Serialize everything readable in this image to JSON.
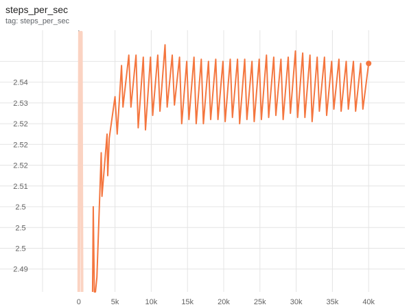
{
  "title": "steps_per_sec",
  "tag": "tag: steps_per_sec",
  "chart_data": {
    "type": "line",
    "x_ticks": [
      0,
      5000,
      10000,
      15000,
      20000,
      25000,
      30000,
      35000,
      40000
    ],
    "x_tick_labels": [
      "0",
      "5k",
      "10k",
      "15k",
      "20k",
      "25k",
      "30k",
      "35k",
      "40k"
    ],
    "y_ticks": [
      2.49,
      2.495,
      2.5,
      2.505,
      2.51,
      2.515,
      2.52,
      2.525,
      2.53,
      2.535,
      2.54
    ],
    "y_tick_labels": [
      "2.49",
      "2.5",
      "2.5",
      "2.5",
      "2.51",
      "2.52",
      "2.52",
      "2.52",
      "2.53",
      "2.54",
      ""
    ],
    "xlim": [
      -5000,
      45000
    ],
    "ylim": [
      2.4845,
      2.5475
    ],
    "grid": true,
    "series": [
      {
        "color": "#f4763f",
        "smoothed": true,
        "points": [
          [
            1900,
            2.4845
          ],
          [
            2000,
            2.505
          ],
          [
            2150,
            2.4845
          ],
          [
            2300,
            2.4845
          ],
          [
            2500,
            2.488
          ],
          [
            3100,
            2.518
          ],
          [
            3200,
            2.5075
          ],
          [
            3900,
            2.5225
          ],
          [
            4000,
            2.5125
          ],
          [
            4200,
            2.5215
          ],
          [
            5000,
            2.5315
          ],
          [
            5300,
            2.5225
          ],
          [
            5900,
            2.539
          ],
          [
            6100,
            2.529
          ],
          [
            6900,
            2.5415
          ],
          [
            7200,
            2.529
          ],
          [
            7900,
            2.5415
          ],
          [
            8200,
            2.524
          ],
          [
            8900,
            2.541
          ],
          [
            9200,
            2.5235
          ],
          [
            9900,
            2.541
          ],
          [
            10200,
            2.527
          ],
          [
            10900,
            2.5415
          ],
          [
            11200,
            2.528
          ],
          [
            11900,
            2.544
          ],
          [
            12200,
            2.529
          ],
          [
            12900,
            2.5415
          ],
          [
            13200,
            2.5295
          ],
          [
            13900,
            2.541
          ],
          [
            14200,
            2.525
          ],
          [
            14900,
            2.54
          ],
          [
            15200,
            2.526
          ],
          [
            15900,
            2.541
          ],
          [
            16200,
            2.525
          ],
          [
            16900,
            2.5405
          ],
          [
            17200,
            2.525
          ],
          [
            17900,
            2.54
          ],
          [
            18200,
            2.526
          ],
          [
            18900,
            2.5405
          ],
          [
            19200,
            2.526
          ],
          [
            19900,
            2.54
          ],
          [
            20200,
            2.5255
          ],
          [
            20900,
            2.5405
          ],
          [
            21200,
            2.5265
          ],
          [
            21900,
            2.5405
          ],
          [
            22200,
            2.525
          ],
          [
            22900,
            2.5405
          ],
          [
            23200,
            2.526
          ],
          [
            23900,
            2.54
          ],
          [
            24200,
            2.5255
          ],
          [
            24900,
            2.5405
          ],
          [
            25200,
            2.526
          ],
          [
            25900,
            2.5415
          ],
          [
            26200,
            2.5265
          ],
          [
            26900,
            2.541
          ],
          [
            27200,
            2.527
          ],
          [
            27900,
            2.5405
          ],
          [
            28200,
            2.526
          ],
          [
            28900,
            2.541
          ],
          [
            29200,
            2.5275
          ],
          [
            29900,
            2.5425
          ],
          [
            30200,
            2.5265
          ],
          [
            30900,
            2.542
          ],
          [
            31200,
            2.5265
          ],
          [
            31900,
            2.5415
          ],
          [
            32200,
            2.5255
          ],
          [
            32900,
            2.541
          ],
          [
            33200,
            2.528
          ],
          [
            33900,
            2.541
          ],
          [
            34200,
            2.527
          ],
          [
            34900,
            2.54
          ],
          [
            35200,
            2.5285
          ],
          [
            35900,
            2.5405
          ],
          [
            36200,
            2.528
          ],
          [
            36900,
            2.54
          ],
          [
            37200,
            2.5285
          ],
          [
            37900,
            2.54
          ],
          [
            38200,
            2.528
          ],
          [
            38900,
            2.5395
          ],
          [
            39200,
            2.5285
          ],
          [
            40000,
            2.5395
          ]
        ]
      }
    ],
    "raw_series": {
      "color": "#fbd3c2",
      "points": [
        [
          0,
          2.4845
        ],
        [
          100,
          2.547
        ],
        [
          200,
          2.54
        ],
        [
          350,
          2.547
        ],
        [
          450,
          2.4845
        ]
      ]
    },
    "last_point": [
      40000,
      2.5395
    ]
  }
}
